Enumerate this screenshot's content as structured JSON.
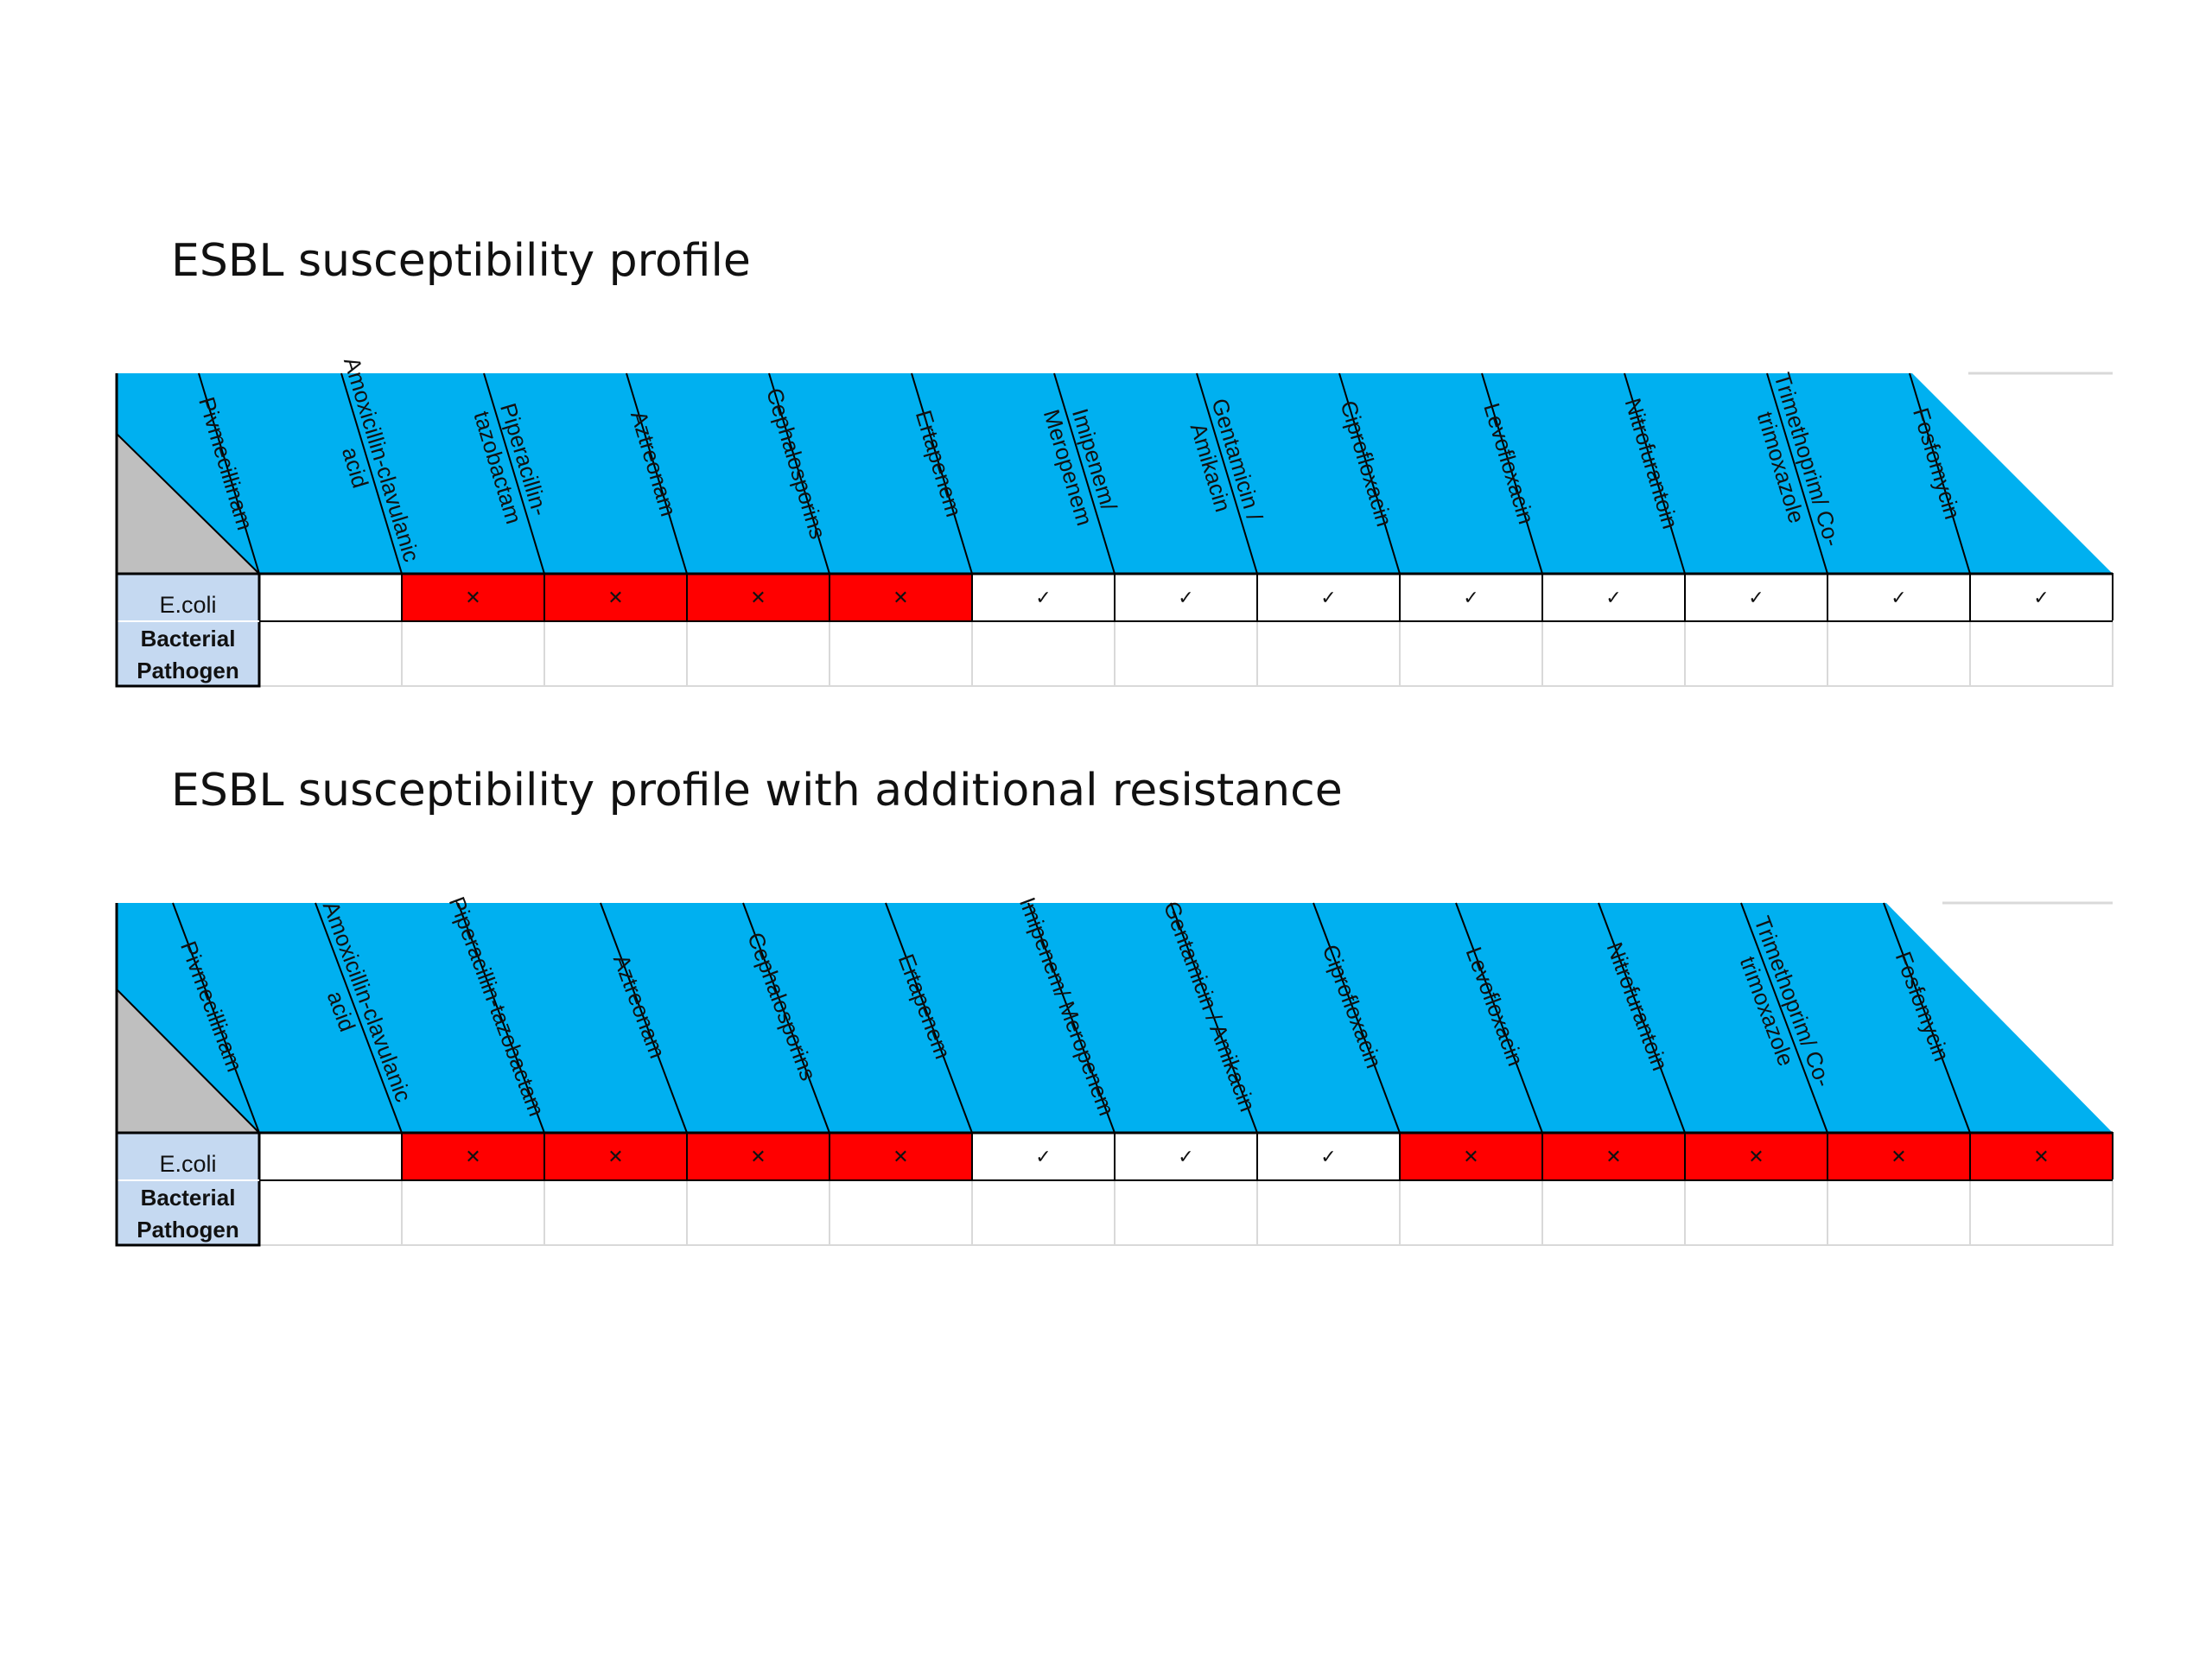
{
  "colors": {
    "header": "#00B0F0",
    "corner": "#BFBFBF",
    "row_label": "#C5D9F1",
    "resistant": "#FF0000",
    "susceptible": "#FFFFFF",
    "grid": "#D9D9D9",
    "line": "#000000"
  },
  "marks": {
    "resistant": "✕",
    "susceptible": "✓"
  },
  "tables": [
    {
      "title": "ESBL susceptibility profile",
      "row1_label": "E.coli",
      "row2_label_line1": "Bacterial",
      "row2_label_line2": "Pathogen",
      "drugs": [
        [
          "Pivmecillinam"
        ],
        [
          "Amoxicillin-clavulanic",
          "acid"
        ],
        [
          "Piperacillin-",
          "tazobactam"
        ],
        [
          "Aztreonam"
        ],
        [
          "Cephalosporins"
        ],
        [
          "Ertapenem"
        ],
        [
          "Imipenem/",
          "Meropenem"
        ],
        [
          "Gentamicin /",
          "Amikacin"
        ],
        [
          "Ciprofloxacin"
        ],
        [
          "Levofloxacin"
        ],
        [
          "Nitrofurantoin"
        ],
        [
          "Trimethoprim/ Co-",
          "trimoxazole"
        ],
        [
          "Fosfomycin"
        ]
      ],
      "results": [
        "",
        "R",
        "R",
        "R",
        "R",
        "S",
        "S",
        "S",
        "S",
        "S",
        "S",
        "S",
        "S"
      ]
    },
    {
      "title": "ESBL susceptibility profile with additional resistance",
      "row1_label": "E.coli",
      "row2_label_line1": "Bacterial",
      "row2_label_line2": "Pathogen",
      "drugs": [
        [
          "Pivmecillinam"
        ],
        [
          "Amoxicillin-clavulanic",
          "acid"
        ],
        [
          "Piperacillin-tazobactam"
        ],
        [
          "Aztreonam"
        ],
        [
          "Cephalosporins"
        ],
        [
          "Ertapenem"
        ],
        [
          "Imipenem/ Meropenem"
        ],
        [
          "Gentamicin / Amikacin"
        ],
        [
          "Ciprofloxacin"
        ],
        [
          "Levofloxacin"
        ],
        [
          "Nitrofurantoin"
        ],
        [
          "Trimethoprim/ Co-",
          "trimoxazole"
        ],
        [
          "Fosfomycin"
        ]
      ],
      "results": [
        "",
        "R",
        "R",
        "R",
        "R",
        "S",
        "S",
        "S",
        "R",
        "R",
        "R",
        "R",
        "R"
      ]
    }
  ]
}
